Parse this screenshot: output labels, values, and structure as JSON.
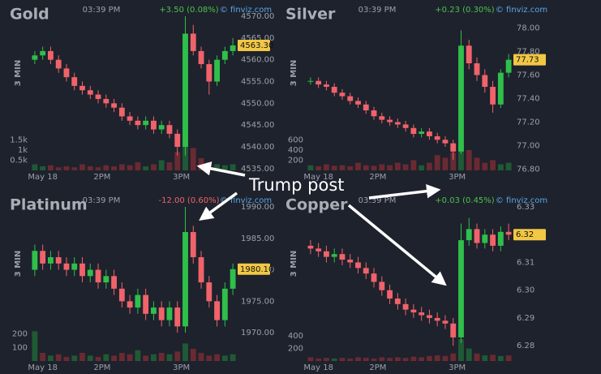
{
  "annotation": "Trump post",
  "chart_data": [
    {
      "type": "candlestick",
      "title": "Gold",
      "time": "03:39 PM",
      "change": "+3.50 (0.08%)",
      "change_color": "#4ec04e",
      "source": "© finviz.com",
      "ylabel": "3 MIN",
      "color_up": "#2fbf4a",
      "color_down": "#f0636a",
      "volume_up": "#1f5a35",
      "volume_down": "#6a2a31",
      "xlim": [
        0,
        52
      ],
      "xticks": [
        {
          "value": 3,
          "label": "May 18"
        },
        {
          "value": 18,
          "label": "2PM"
        },
        {
          "value": 38,
          "label": "3PM"
        }
      ],
      "ylim": [
        4534.6,
        4570
      ],
      "yticks": [
        {
          "value": 4570,
          "label": "4570.00"
        },
        {
          "value": 4565,
          "label": "4565.00"
        },
        {
          "value": 4560,
          "label": "4560.00"
        },
        {
          "value": 4555,
          "label": "4555.00"
        },
        {
          "value": 4550,
          "label": "4550.00"
        },
        {
          "value": 4545,
          "label": "4545.00"
        },
        {
          "value": 4540,
          "label": "4540.00"
        },
        {
          "value": 4535,
          "label": "4535.00"
        }
      ],
      "vlim": [
        0,
        2000
      ],
      "vticks": [
        {
          "value": 500,
          "label": "0.5k"
        },
        {
          "value": 1000,
          "label": "1k"
        },
        {
          "value": 1500,
          "label": "1.5k"
        }
      ],
      "last": {
        "value": 4563.3,
        "label": "4563.30"
      },
      "x": [
        1,
        3,
        5,
        7,
        9,
        11,
        13,
        15,
        17,
        19,
        21,
        23,
        25,
        27,
        29,
        31,
        33,
        35,
        37,
        39,
        41,
        43,
        45,
        47,
        49,
        51
      ],
      "open": [
        4560,
        4561,
        4562,
        4560,
        4558,
        4556,
        4554,
        4553,
        4552,
        4551,
        4550,
        4549,
        4547,
        4546,
        4545,
        4546,
        4544,
        4545,
        4543,
        4540,
        4566,
        4562,
        4559,
        4555,
        4560,
        4562
      ],
      "high": [
        4562,
        4563,
        4563,
        4561,
        4559,
        4557,
        4555,
        4554,
        4553,
        4552,
        4551,
        4550,
        4548,
        4547,
        4547,
        4547,
        4546,
        4546,
        4544,
        4570,
        4568,
        4563,
        4560,
        4561,
        4563,
        4565
      ],
      "low": [
        4559,
        4560,
        4559,
        4557,
        4555,
        4553,
        4552,
        4551,
        4550,
        4549,
        4548,
        4546,
        4545,
        4544,
        4544,
        4543,
        4543,
        4542,
        4538,
        4538,
        4561,
        4558,
        4552,
        4554,
        4559,
        4561
      ],
      "close": [
        4561,
        4562,
        4560,
        4558,
        4556,
        4554,
        4553,
        4552,
        4551,
        4550,
        4549,
        4547,
        4546,
        4545,
        4546,
        4544,
        4545,
        4543,
        4540,
        4566,
        4562,
        4559,
        4555,
        4560,
        4562,
        4563.3
      ],
      "volume": [
        300,
        200,
        250,
        150,
        200,
        150,
        300,
        200,
        150,
        250,
        200,
        300,
        250,
        400,
        200,
        300,
        500,
        400,
        900,
        1500,
        1100,
        600,
        400,
        300,
        250,
        300
      ]
    },
    {
      "type": "candlestick",
      "title": "Silver",
      "time": "03:39 PM",
      "change": "+0.23 (0.30%)",
      "change_color": "#4ec04e",
      "source": "© finviz.com",
      "ylabel": "3 MIN",
      "color_up": "#2fbf4a",
      "color_down": "#f0636a",
      "volume_up": "#1f5a35",
      "volume_down": "#6a2a31",
      "xlim": [
        0,
        52
      ],
      "xticks": [
        {
          "value": 3,
          "label": "May 18"
        },
        {
          "value": 18,
          "label": "2PM"
        },
        {
          "value": 38,
          "label": "3PM"
        }
      ],
      "ylim": [
        76.79,
        78.1
      ],
      "yticks": [
        {
          "value": 78,
          "label": "78.00"
        },
        {
          "value": 77.8,
          "label": "77.80"
        },
        {
          "value": 77.6,
          "label": "77.60"
        },
        {
          "value": 77.4,
          "label": "77.40"
        },
        {
          "value": 77.2,
          "label": "77.20"
        },
        {
          "value": 77,
          "label": "77.00"
        },
        {
          "value": 76.8,
          "label": "76.80"
        }
      ],
      "vlim": [
        0,
        800
      ],
      "vticks": [
        200,
        400,
        600
      ],
      "last": {
        "value": 77.73,
        "label": "77.73"
      },
      "x": [
        1,
        3,
        5,
        7,
        9,
        11,
        13,
        15,
        17,
        19,
        21,
        23,
        25,
        27,
        29,
        31,
        33,
        35,
        37,
        39,
        41,
        43,
        45,
        47,
        49,
        51
      ],
      "open": [
        77.55,
        77.55,
        77.52,
        77.5,
        77.45,
        77.42,
        77.38,
        77.35,
        77.3,
        77.25,
        77.22,
        77.2,
        77.18,
        77.15,
        77.1,
        77.12,
        77.08,
        77.05,
        77.02,
        76.95,
        77.85,
        77.7,
        77.6,
        77.5,
        77.35,
        77.62
      ],
      "high": [
        77.58,
        77.58,
        77.55,
        77.53,
        77.48,
        77.45,
        77.41,
        77.38,
        77.33,
        77.28,
        77.25,
        77.23,
        77.21,
        77.18,
        77.15,
        77.15,
        77.11,
        77.08,
        77.05,
        77.98,
        77.9,
        77.75,
        77.65,
        77.55,
        77.65,
        77.78
      ],
      "low": [
        77.52,
        77.49,
        77.47,
        77.42,
        77.39,
        77.35,
        77.32,
        77.27,
        77.22,
        77.19,
        77.17,
        77.15,
        77.12,
        77.07,
        77.07,
        77.05,
        77.02,
        76.99,
        76.88,
        76.93,
        77.65,
        77.55,
        77.45,
        77.28,
        77.32,
        77.58
      ],
      "close": [
        77.55,
        77.52,
        77.5,
        77.45,
        77.42,
        77.38,
        77.35,
        77.3,
        77.25,
        77.22,
        77.2,
        77.18,
        77.15,
        77.1,
        77.12,
        77.08,
        77.05,
        77.02,
        76.95,
        77.85,
        77.7,
        77.6,
        77.5,
        77.35,
        77.62,
        77.73
      ],
      "volume": [
        100,
        80,
        120,
        90,
        100,
        80,
        150,
        100,
        90,
        120,
        100,
        150,
        120,
        200,
        100,
        150,
        300,
        250,
        350,
        500,
        400,
        250,
        150,
        200,
        120,
        150
      ]
    },
    {
      "type": "candlestick",
      "title": "Platinum",
      "time": "03:39 PM",
      "change": "-12.00 (0.60%)",
      "change_color": "#f0636a",
      "source": "© finviz.com",
      "ylabel": "3 MIN",
      "color_up": "#2fbf4a",
      "color_down": "#f0636a",
      "volume_up": "#1f5a35",
      "volume_down": "#6a2a31",
      "xlim": [
        0,
        52
      ],
      "xticks": [
        {
          "value": 3,
          "label": "May 18"
        },
        {
          "value": 18,
          "label": "2PM"
        },
        {
          "value": 38,
          "label": "3PM"
        }
      ],
      "ylim": [
        1965.5,
        1990
      ],
      "yticks": [
        {
          "value": 1990,
          "label": "1990.00"
        },
        {
          "value": 1985,
          "label": "1985.00"
        },
        {
          "value": 1980,
          "label": "1980.00"
        },
        {
          "value": 1975,
          "label": "1975.00"
        },
        {
          "value": 1970,
          "label": "1970.00"
        }
      ],
      "vlim": [
        0,
        300
      ],
      "vticks": [
        100,
        200
      ],
      "last": {
        "value": 1980.1,
        "label": "1980.10"
      },
      "x": [
        1,
        3,
        5,
        7,
        9,
        11,
        13,
        15,
        17,
        19,
        21,
        23,
        25,
        27,
        29,
        31,
        33,
        35,
        37,
        39,
        41,
        43,
        45,
        47,
        49,
        51
      ],
      "open": [
        1980,
        1983,
        1981,
        1982,
        1981,
        1980,
        1981,
        1979,
        1980,
        1978,
        1979,
        1977,
        1975,
        1974,
        1976,
        1973,
        1974,
        1972,
        1974,
        1971,
        1986,
        1982,
        1978,
        1975,
        1972,
        1977
      ],
      "high": [
        1984,
        1984,
        1983,
        1983,
        1982,
        1982,
        1982,
        1981,
        1981,
        1980,
        1980,
        1978,
        1976,
        1977,
        1977,
        1975,
        1975,
        1975,
        1975,
        1990,
        1987,
        1983,
        1979,
        1976,
        1978,
        1981
      ],
      "low": [
        1979,
        1980,
        1980,
        1980,
        1979,
        1979,
        1978,
        1978,
        1977,
        1977,
        1976,
        1974,
        1973,
        1973,
        1972,
        1972,
        1971,
        1971,
        1970,
        1970,
        1981,
        1977,
        1974,
        1971,
        1971,
        1976
      ],
      "close": [
        1983,
        1981,
        1982,
        1981,
        1980,
        1981,
        1979,
        1980,
        1978,
        1979,
        1977,
        1975,
        1974,
        1976,
        1973,
        1974,
        1972,
        1974,
        1971,
        1986,
        1982,
        1978,
        1975,
        1972,
        1977,
        1980.1
      ],
      "volume": [
        220,
        60,
        40,
        50,
        30,
        40,
        60,
        40,
        30,
        50,
        40,
        60,
        50,
        80,
        40,
        50,
        60,
        50,
        70,
        130,
        90,
        60,
        40,
        50,
        40,
        50
      ]
    },
    {
      "type": "candlestick",
      "title": "Copper",
      "time": "03:39 PM",
      "change": "+0.03 (0.45%)",
      "change_color": "#4ec04e",
      "source": "© finviz.com",
      "ylabel": "3 MIN",
      "color_up": "#2fbf4a",
      "color_down": "#f0636a",
      "volume_up": "#1f5a35",
      "volume_down": "#6a2a31",
      "xlim": [
        0,
        52
      ],
      "xticks": [
        {
          "value": 3,
          "label": "May 18"
        },
        {
          "value": 18,
          "label": "2PM"
        },
        {
          "value": 38,
          "label": "3PM"
        }
      ],
      "ylim": [
        6.2745,
        6.33
      ],
      "yticks": [
        6.33,
        6.32,
        6.31,
        {
          "value": 6.3,
          "label": "6.30"
        },
        6.29,
        6.28
      ],
      "vlim": [
        0,
        650
      ],
      "vticks": [
        200,
        400
      ],
      "last": {
        "value": 6.32,
        "label": "6.32"
      },
      "x": [
        1,
        3,
        5,
        7,
        9,
        11,
        13,
        15,
        17,
        19,
        21,
        23,
        25,
        27,
        29,
        31,
        33,
        35,
        37,
        39,
        41,
        43,
        45,
        47,
        49,
        51
      ],
      "open": [
        6.316,
        6.315,
        6.314,
        6.312,
        6.313,
        6.311,
        6.31,
        6.308,
        6.306,
        6.303,
        6.3,
        6.297,
        6.295,
        6.293,
        6.292,
        6.291,
        6.29,
        6.289,
        6.288,
        6.283,
        6.318,
        6.322,
        6.317,
        6.32,
        6.316,
        6.321
      ],
      "high": [
        6.318,
        6.317,
        6.316,
        6.315,
        6.315,
        6.313,
        6.312,
        6.31,
        6.308,
        6.305,
        6.302,
        6.299,
        6.297,
        6.295,
        6.294,
        6.293,
        6.292,
        6.291,
        6.29,
        6.324,
        6.326,
        6.324,
        6.322,
        6.322,
        6.323,
        6.324
      ],
      "low": [
        6.313,
        6.312,
        6.31,
        6.31,
        6.309,
        6.308,
        6.306,
        6.304,
        6.301,
        6.298,
        6.295,
        6.293,
        6.291,
        6.29,
        6.289,
        6.288,
        6.287,
        6.286,
        6.28,
        6.281,
        6.316,
        6.315,
        6.315,
        6.314,
        6.314,
        6.318
      ],
      "close": [
        6.315,
        6.314,
        6.312,
        6.313,
        6.311,
        6.31,
        6.308,
        6.306,
        6.303,
        6.3,
        6.297,
        6.295,
        6.293,
        6.292,
        6.291,
        6.29,
        6.289,
        6.288,
        6.283,
        6.318,
        6.322,
        6.317,
        6.32,
        6.316,
        6.321,
        6.32
      ],
      "volume": [
        60,
        40,
        50,
        40,
        50,
        40,
        60,
        50,
        40,
        60,
        50,
        60,
        50,
        70,
        60,
        80,
        90,
        80,
        120,
        350,
        200,
        120,
        90,
        100,
        80,
        90
      ]
    }
  ]
}
